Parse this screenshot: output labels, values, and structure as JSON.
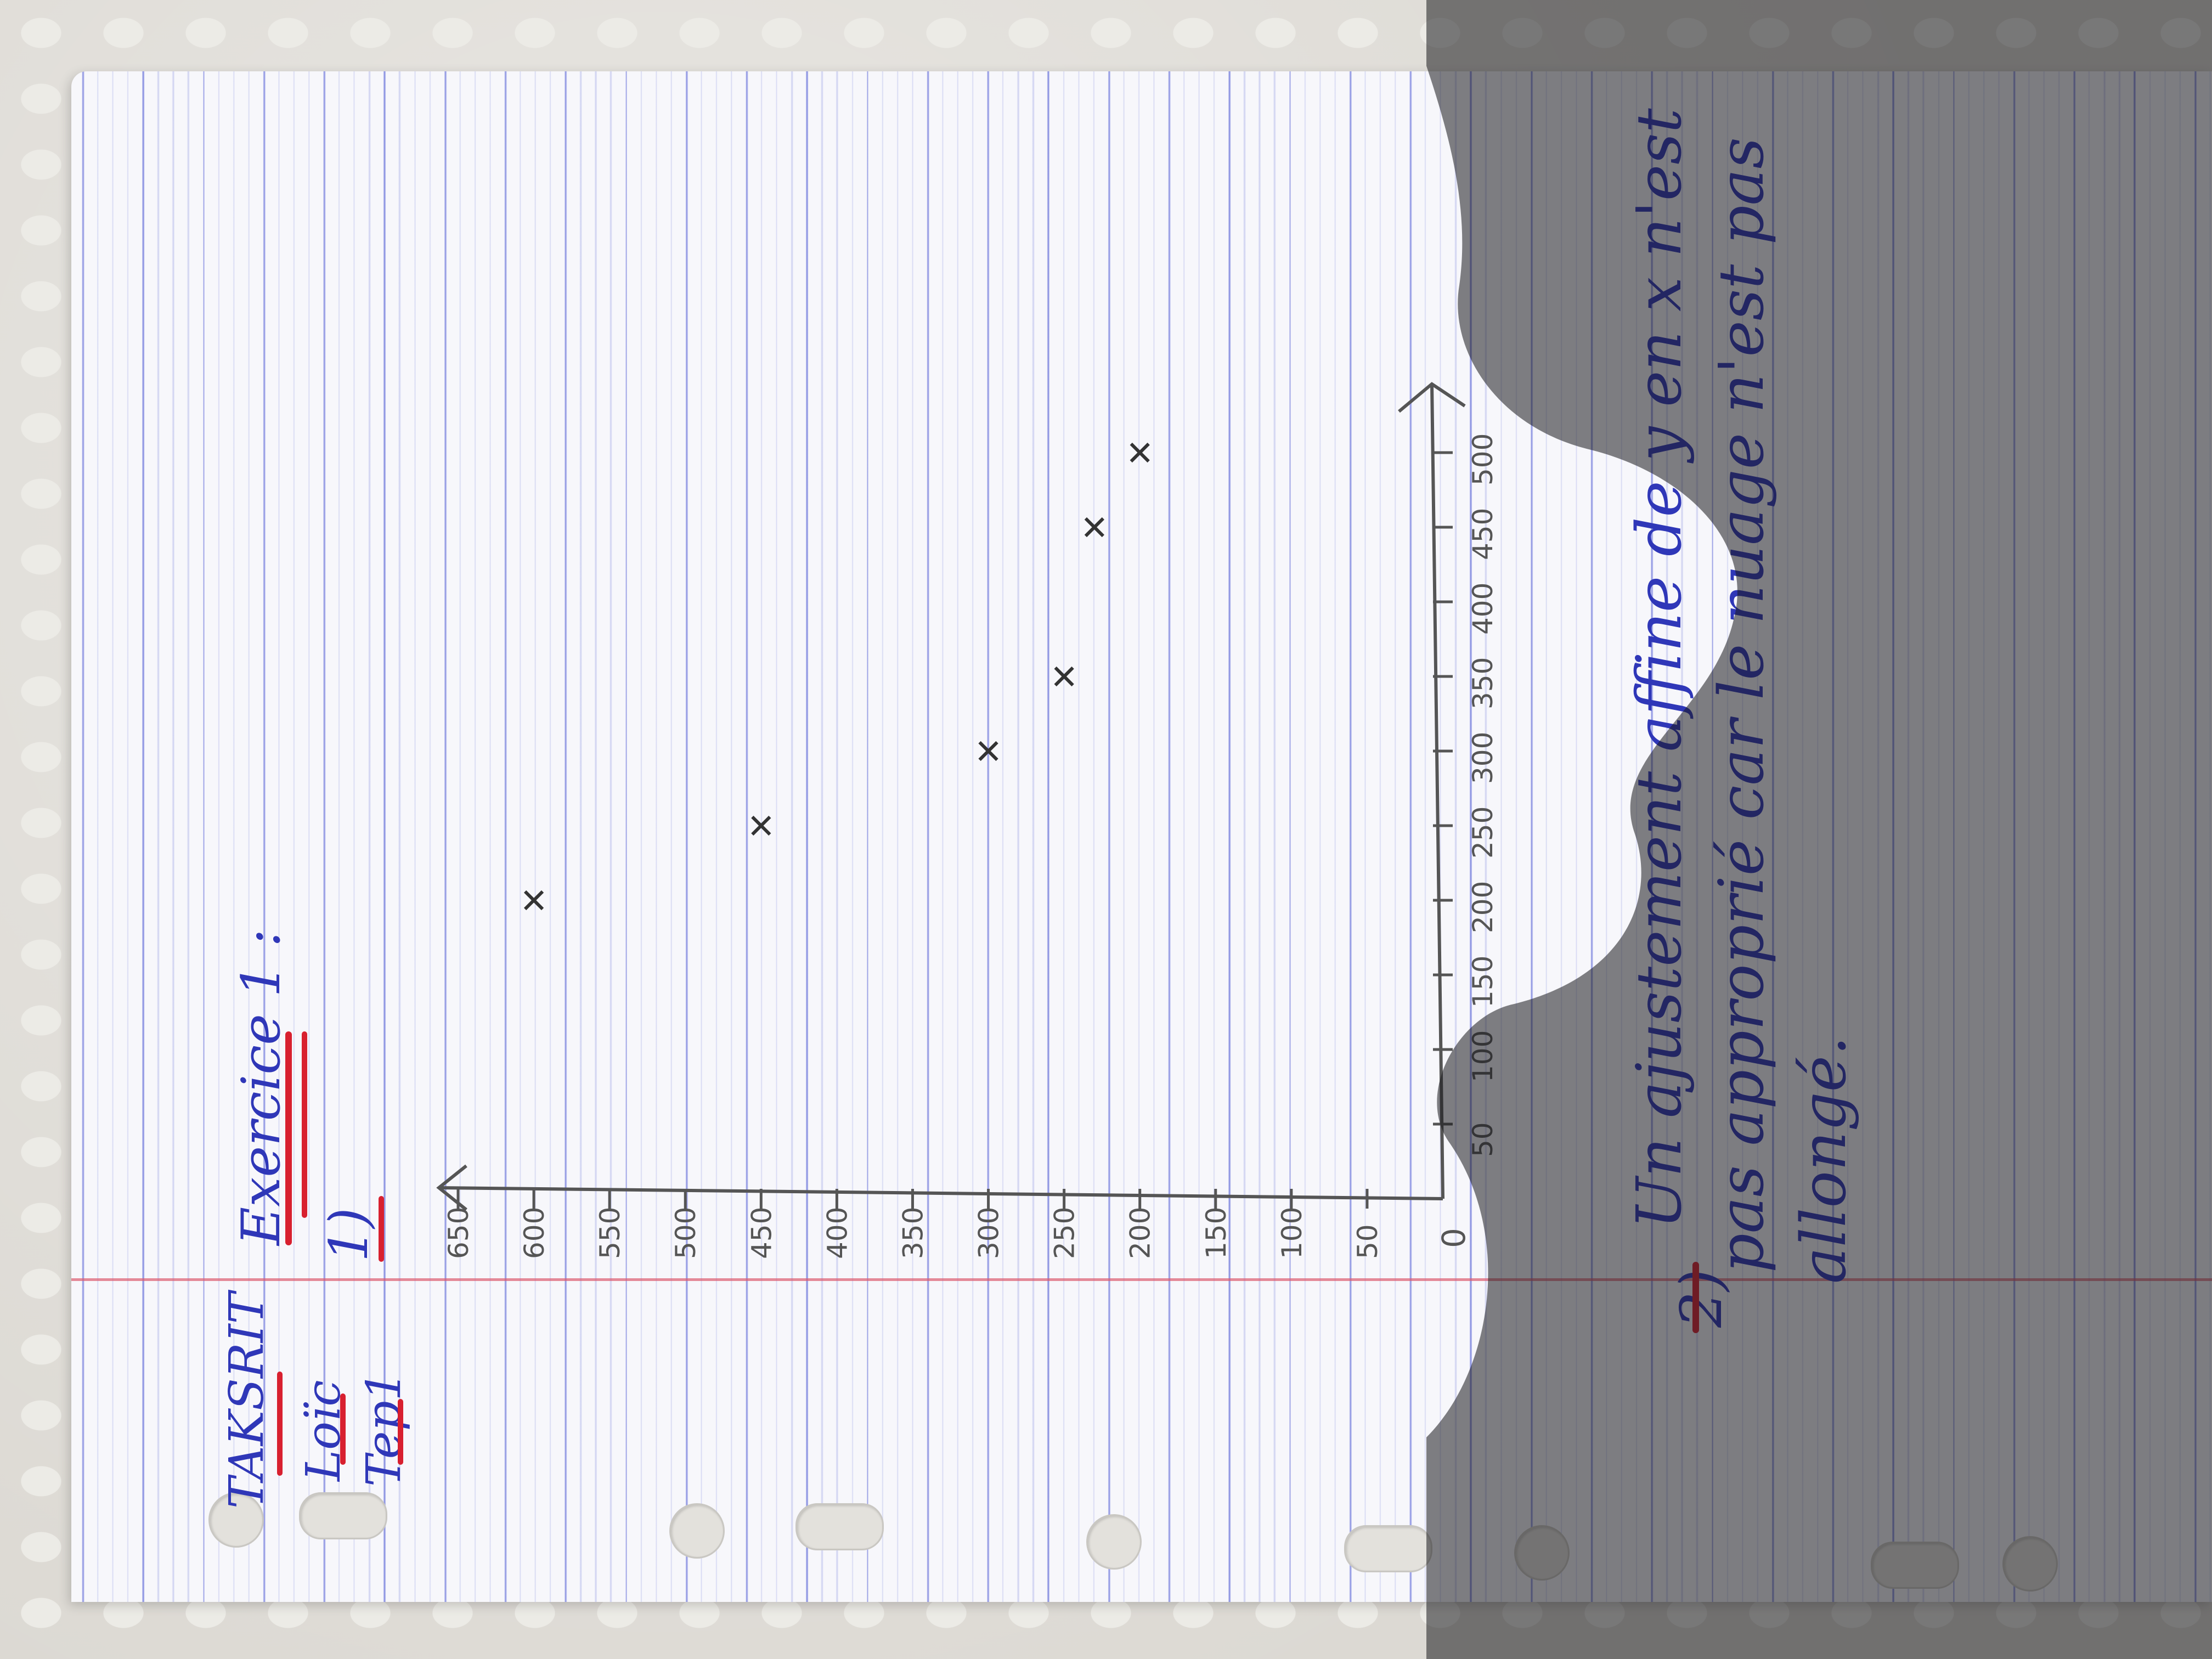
{
  "header": {
    "name": "TAKSRIT",
    "first_name": "Loïc",
    "group": "Tep1",
    "exercise": "Exercice 1 :",
    "question1": "1)"
  },
  "chart_data": {
    "type": "scatter",
    "title": "",
    "xlabel": "",
    "ylabel": "",
    "origin_label": "0",
    "x_ticks": [
      "50",
      "100",
      "150",
      "200",
      "250",
      "300",
      "350",
      "400",
      "450",
      "500"
    ],
    "y_ticks": [
      "50",
      "100",
      "150",
      "200",
      "250",
      "300",
      "350",
      "400",
      "450",
      "500",
      "550",
      "600",
      "650"
    ],
    "xlim": [
      0,
      500
    ],
    "ylim": [
      0,
      650
    ],
    "grid": false,
    "series": [
      {
        "marker": "x",
        "color": "#333333",
        "points": [
          [
            200,
            600
          ],
          [
            250,
            450
          ],
          [
            300,
            300
          ],
          [
            350,
            250
          ],
          [
            450,
            230
          ],
          [
            500,
            200
          ]
        ]
      }
    ]
  },
  "answer": {
    "number": "2)",
    "line1": "Un ajustement affine de y en x n'est",
    "line2": "pas approprié car le nuage n'est pas",
    "line3": "allongé."
  },
  "colors": {
    "ink_blue": "#2f37b8",
    "underline_red": "#d8202f",
    "pencil": "#555555",
    "grid_blue": "#5a64d7",
    "margin_red": "#dc5a6e"
  }
}
